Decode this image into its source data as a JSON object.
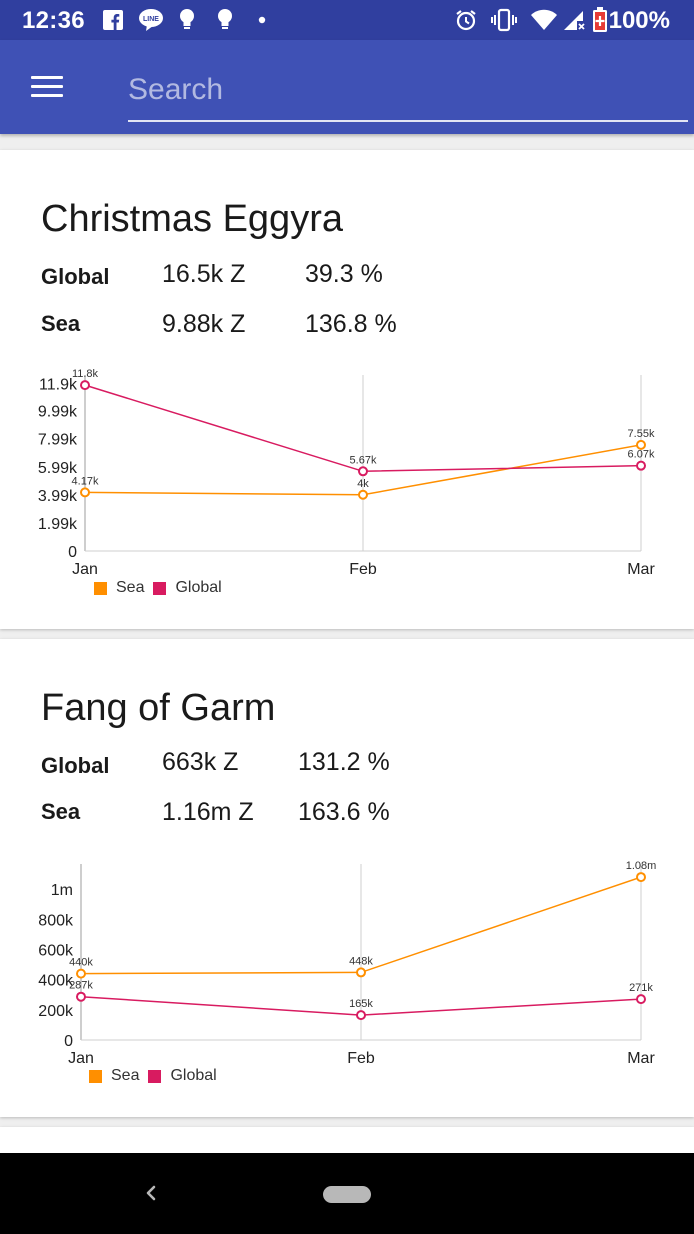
{
  "status_bar": {
    "time": "12:36",
    "battery": "100%",
    "left_icons": [
      "facebook-icon",
      "line-icon",
      "bulb-icon",
      "bulb-icon",
      "dot-icon"
    ],
    "right_icons": [
      "alarm-icon",
      "vibrate-icon",
      "wifi-icon",
      "signal-icon",
      "battery-charging-icon"
    ]
  },
  "app_bar": {
    "search_placeholder": "Search",
    "search_value": ""
  },
  "colors": {
    "status_bar": "#303f9f",
    "app_bar": "#3f51b5",
    "sea": "#ff8f00",
    "global": "#d81b60"
  },
  "items": [
    {
      "name": "Christmas Eggyra",
      "global_label": "Global",
      "global_price": "16.5k Z",
      "global_pct": "39.3 %",
      "sea_label": "Sea",
      "sea_price": "9.88k Z",
      "sea_pct": "136.8 %",
      "chart_data": {
        "type": "line",
        "x": [
          "Jan",
          "Feb",
          "Mar"
        ],
        "y_ticks": [
          "0",
          "1.99k",
          "3.99k",
          "5.99k",
          "7.99k",
          "9.99k",
          "11.9k"
        ],
        "ylim": [
          0,
          11950
        ],
        "series": [
          {
            "name": "Sea",
            "color": "#ff8f00",
            "values": [
              4170,
              4000,
              7550
            ],
            "labels": [
              "4.17k",
              "4k",
              "7.55k"
            ]
          },
          {
            "name": "Global",
            "color": "#d81b60",
            "values": [
              11800,
              5670,
              6070
            ],
            "labels": [
              "11.8k",
              "5.67k",
              "6.07k"
            ]
          }
        ],
        "legend": [
          "Sea",
          "Global"
        ],
        "legend_position": "bottom-left"
      }
    },
    {
      "name": "Fang of Garm",
      "global_label": "Global",
      "global_price": "663k Z",
      "global_pct": "131.2 %",
      "sea_label": "Sea",
      "sea_price": "1.16m Z",
      "sea_pct": "163.6 %",
      "chart_data": {
        "type": "line",
        "x": [
          "Jan",
          "Feb",
          "Mar"
        ],
        "y_ticks": [
          "0",
          "200k",
          "400k",
          "600k",
          "800k",
          "1m"
        ],
        "ylim": [
          0,
          1180000
        ],
        "series": [
          {
            "name": "Sea",
            "color": "#ff8f00",
            "values": [
              440000,
              448000,
              1080000
            ],
            "labels": [
              "440k",
              "448k",
              "1.08m"
            ]
          },
          {
            "name": "Global",
            "color": "#d81b60",
            "values": [
              287000,
              165000,
              271000
            ],
            "labels": [
              "287k",
              "165k",
              "271k"
            ]
          }
        ],
        "legend": [
          "Sea",
          "Global"
        ],
        "legend_position": "bottom-left"
      }
    }
  ]
}
